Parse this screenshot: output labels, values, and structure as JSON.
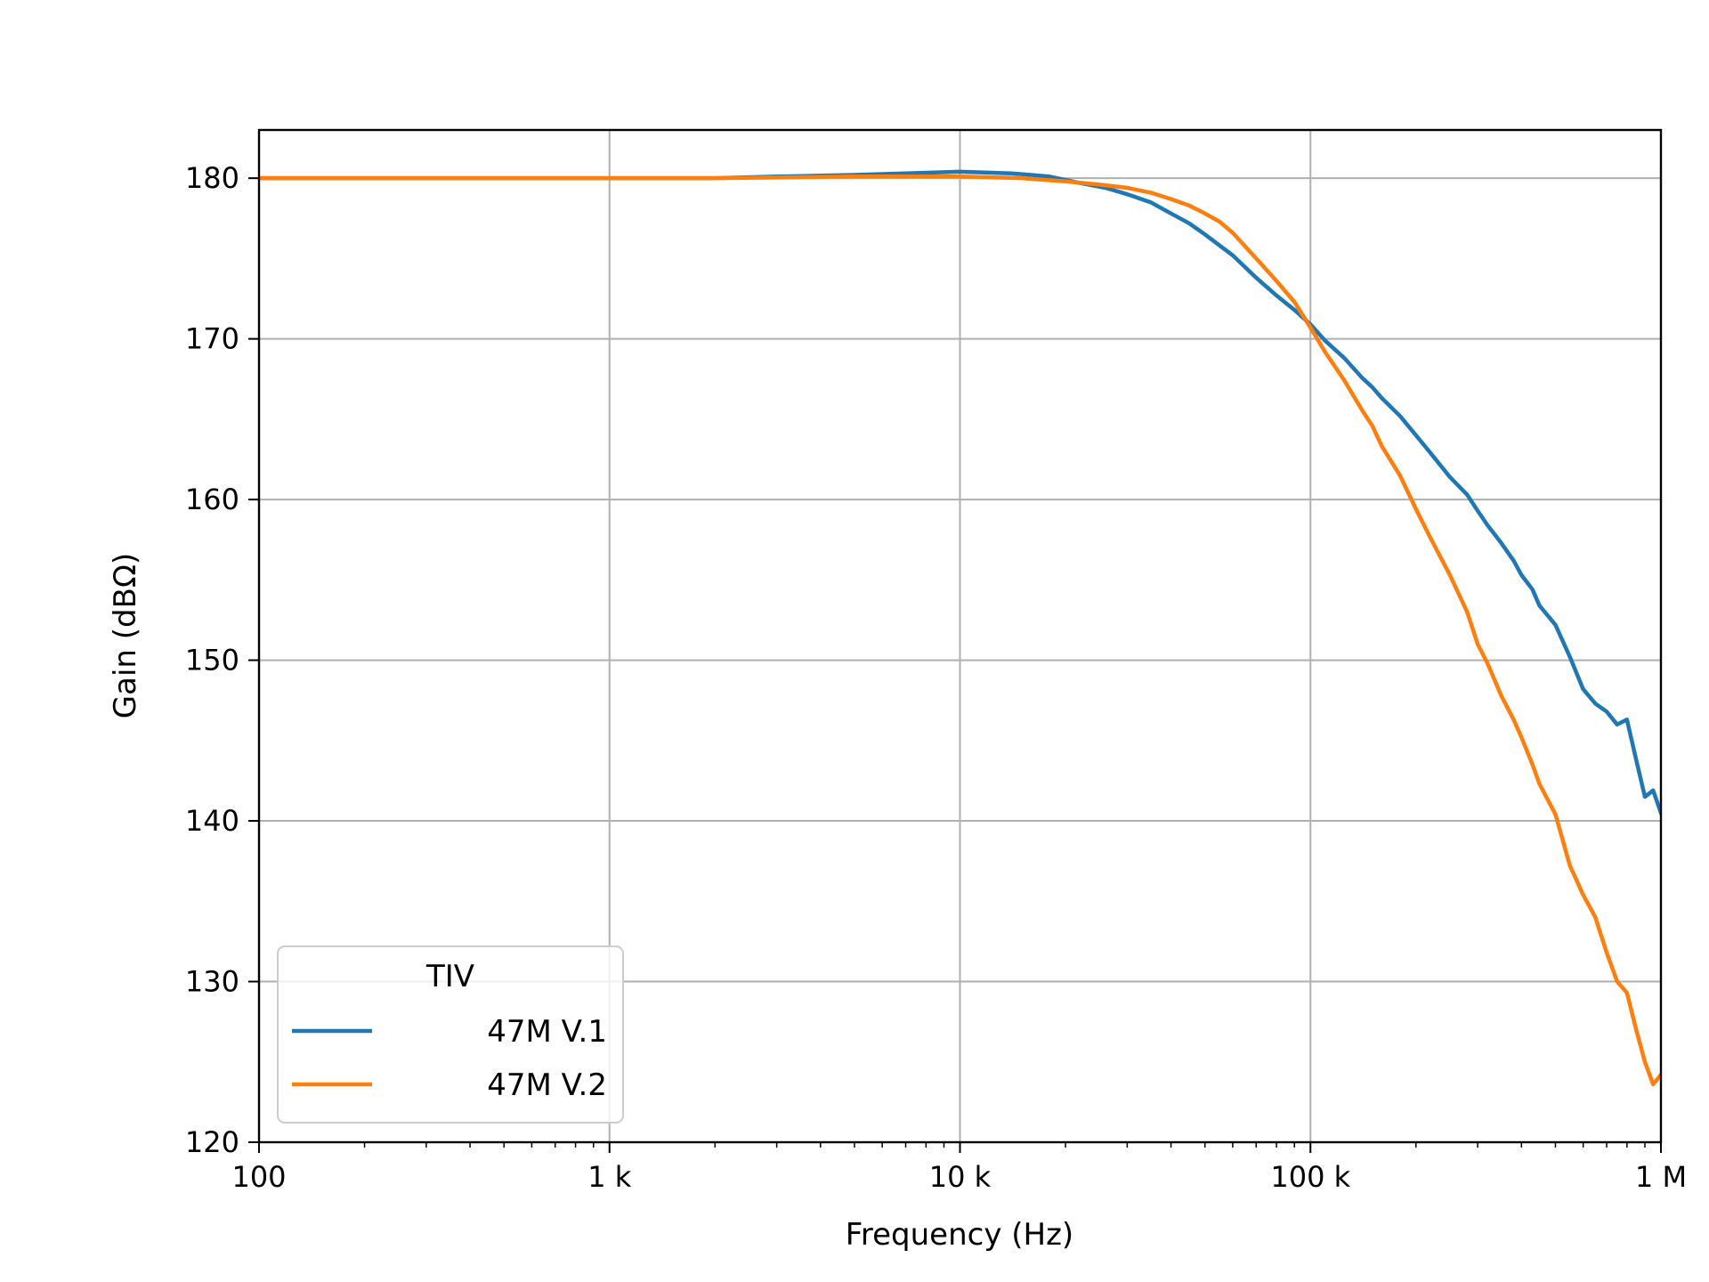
{
  "chart_data": {
    "type": "line",
    "xscale": "log",
    "xlabel": "Frequency (Hz)",
    "ylabel": "Gain (dBΩ)",
    "xlim": [
      100,
      1000000
    ],
    "ylim": [
      120,
      183
    ],
    "grid": true,
    "x_ticks": [
      {
        "value": 100,
        "label": "100"
      },
      {
        "value": 1000,
        "label": "1 k"
      },
      {
        "value": 10000,
        "label": "10 k"
      },
      {
        "value": 100000,
        "label": "100 k"
      },
      {
        "value": 1000000,
        "label": "1 M"
      }
    ],
    "y_ticks": [
      {
        "value": 120,
        "label": "120"
      },
      {
        "value": 130,
        "label": "130"
      },
      {
        "value": 140,
        "label": "140"
      },
      {
        "value": 150,
        "label": "150"
      },
      {
        "value": 160,
        "label": "160"
      },
      {
        "value": 170,
        "label": "170"
      },
      {
        "value": 180,
        "label": "180"
      }
    ],
    "legend": {
      "title": "TIV",
      "placement": "lower-left"
    },
    "series": [
      {
        "name": "47M V.1",
        "color": "#1f77b4",
        "x": [
          100,
          200,
          500,
          1000,
          2000,
          3000,
          5000,
          7000,
          10000,
          14000,
          18000,
          22000,
          26000,
          30000,
          35000,
          40000,
          45000,
          50000,
          60000,
          70000,
          80000,
          90000,
          100000,
          110000,
          125000,
          140000,
          150000,
          160000,
          180000,
          200000,
          220000,
          250000,
          280000,
          300000,
          320000,
          350000,
          380000,
          400000,
          430000,
          450000,
          500000,
          550000,
          600000,
          650000,
          700000,
          750000,
          800000,
          850000,
          900000,
          950000,
          1000000
        ],
        "y": [
          180.0,
          180.0,
          180.0,
          180.0,
          180.0,
          180.1,
          180.2,
          180.3,
          180.4,
          180.3,
          180.1,
          179.7,
          179.4,
          179.0,
          178.5,
          177.8,
          177.2,
          176.5,
          175.2,
          173.8,
          172.7,
          171.8,
          170.9,
          169.9,
          168.8,
          167.6,
          167.0,
          166.3,
          165.2,
          164.0,
          162.9,
          161.4,
          160.3,
          159.3,
          158.4,
          157.3,
          156.2,
          155.3,
          154.4,
          153.4,
          152.2,
          150.2,
          148.2,
          147.3,
          146.8,
          146.0,
          146.3,
          143.8,
          141.5,
          141.9,
          140.5
        ]
      },
      {
        "name": "47M V.2",
        "color": "#ff7f0e",
        "x": [
          100,
          200,
          500,
          1000,
          2000,
          5000,
          10000,
          15000,
          20000,
          25000,
          30000,
          35000,
          40000,
          45000,
          50000,
          55000,
          60000,
          70000,
          80000,
          90000,
          100000,
          110000,
          125000,
          140000,
          150000,
          160000,
          180000,
          200000,
          220000,
          250000,
          280000,
          300000,
          320000,
          350000,
          380000,
          400000,
          430000,
          450000,
          500000,
          550000,
          600000,
          650000,
          700000,
          750000,
          800000,
          850000,
          900000,
          950000,
          1000000
        ],
        "y": [
          180.0,
          180.0,
          180.0,
          180.0,
          180.0,
          180.1,
          180.1,
          180.0,
          179.8,
          179.6,
          179.4,
          179.1,
          178.7,
          178.3,
          177.8,
          177.3,
          176.6,
          175.0,
          173.6,
          172.3,
          170.7,
          169.2,
          167.4,
          165.6,
          164.6,
          163.3,
          161.5,
          159.4,
          157.6,
          155.3,
          153.0,
          151.0,
          149.8,
          147.8,
          146.3,
          145.2,
          143.5,
          142.3,
          140.4,
          137.2,
          135.4,
          134.0,
          131.8,
          130.0,
          129.3,
          127.0,
          125.0,
          123.6,
          124.2
        ]
      }
    ]
  }
}
